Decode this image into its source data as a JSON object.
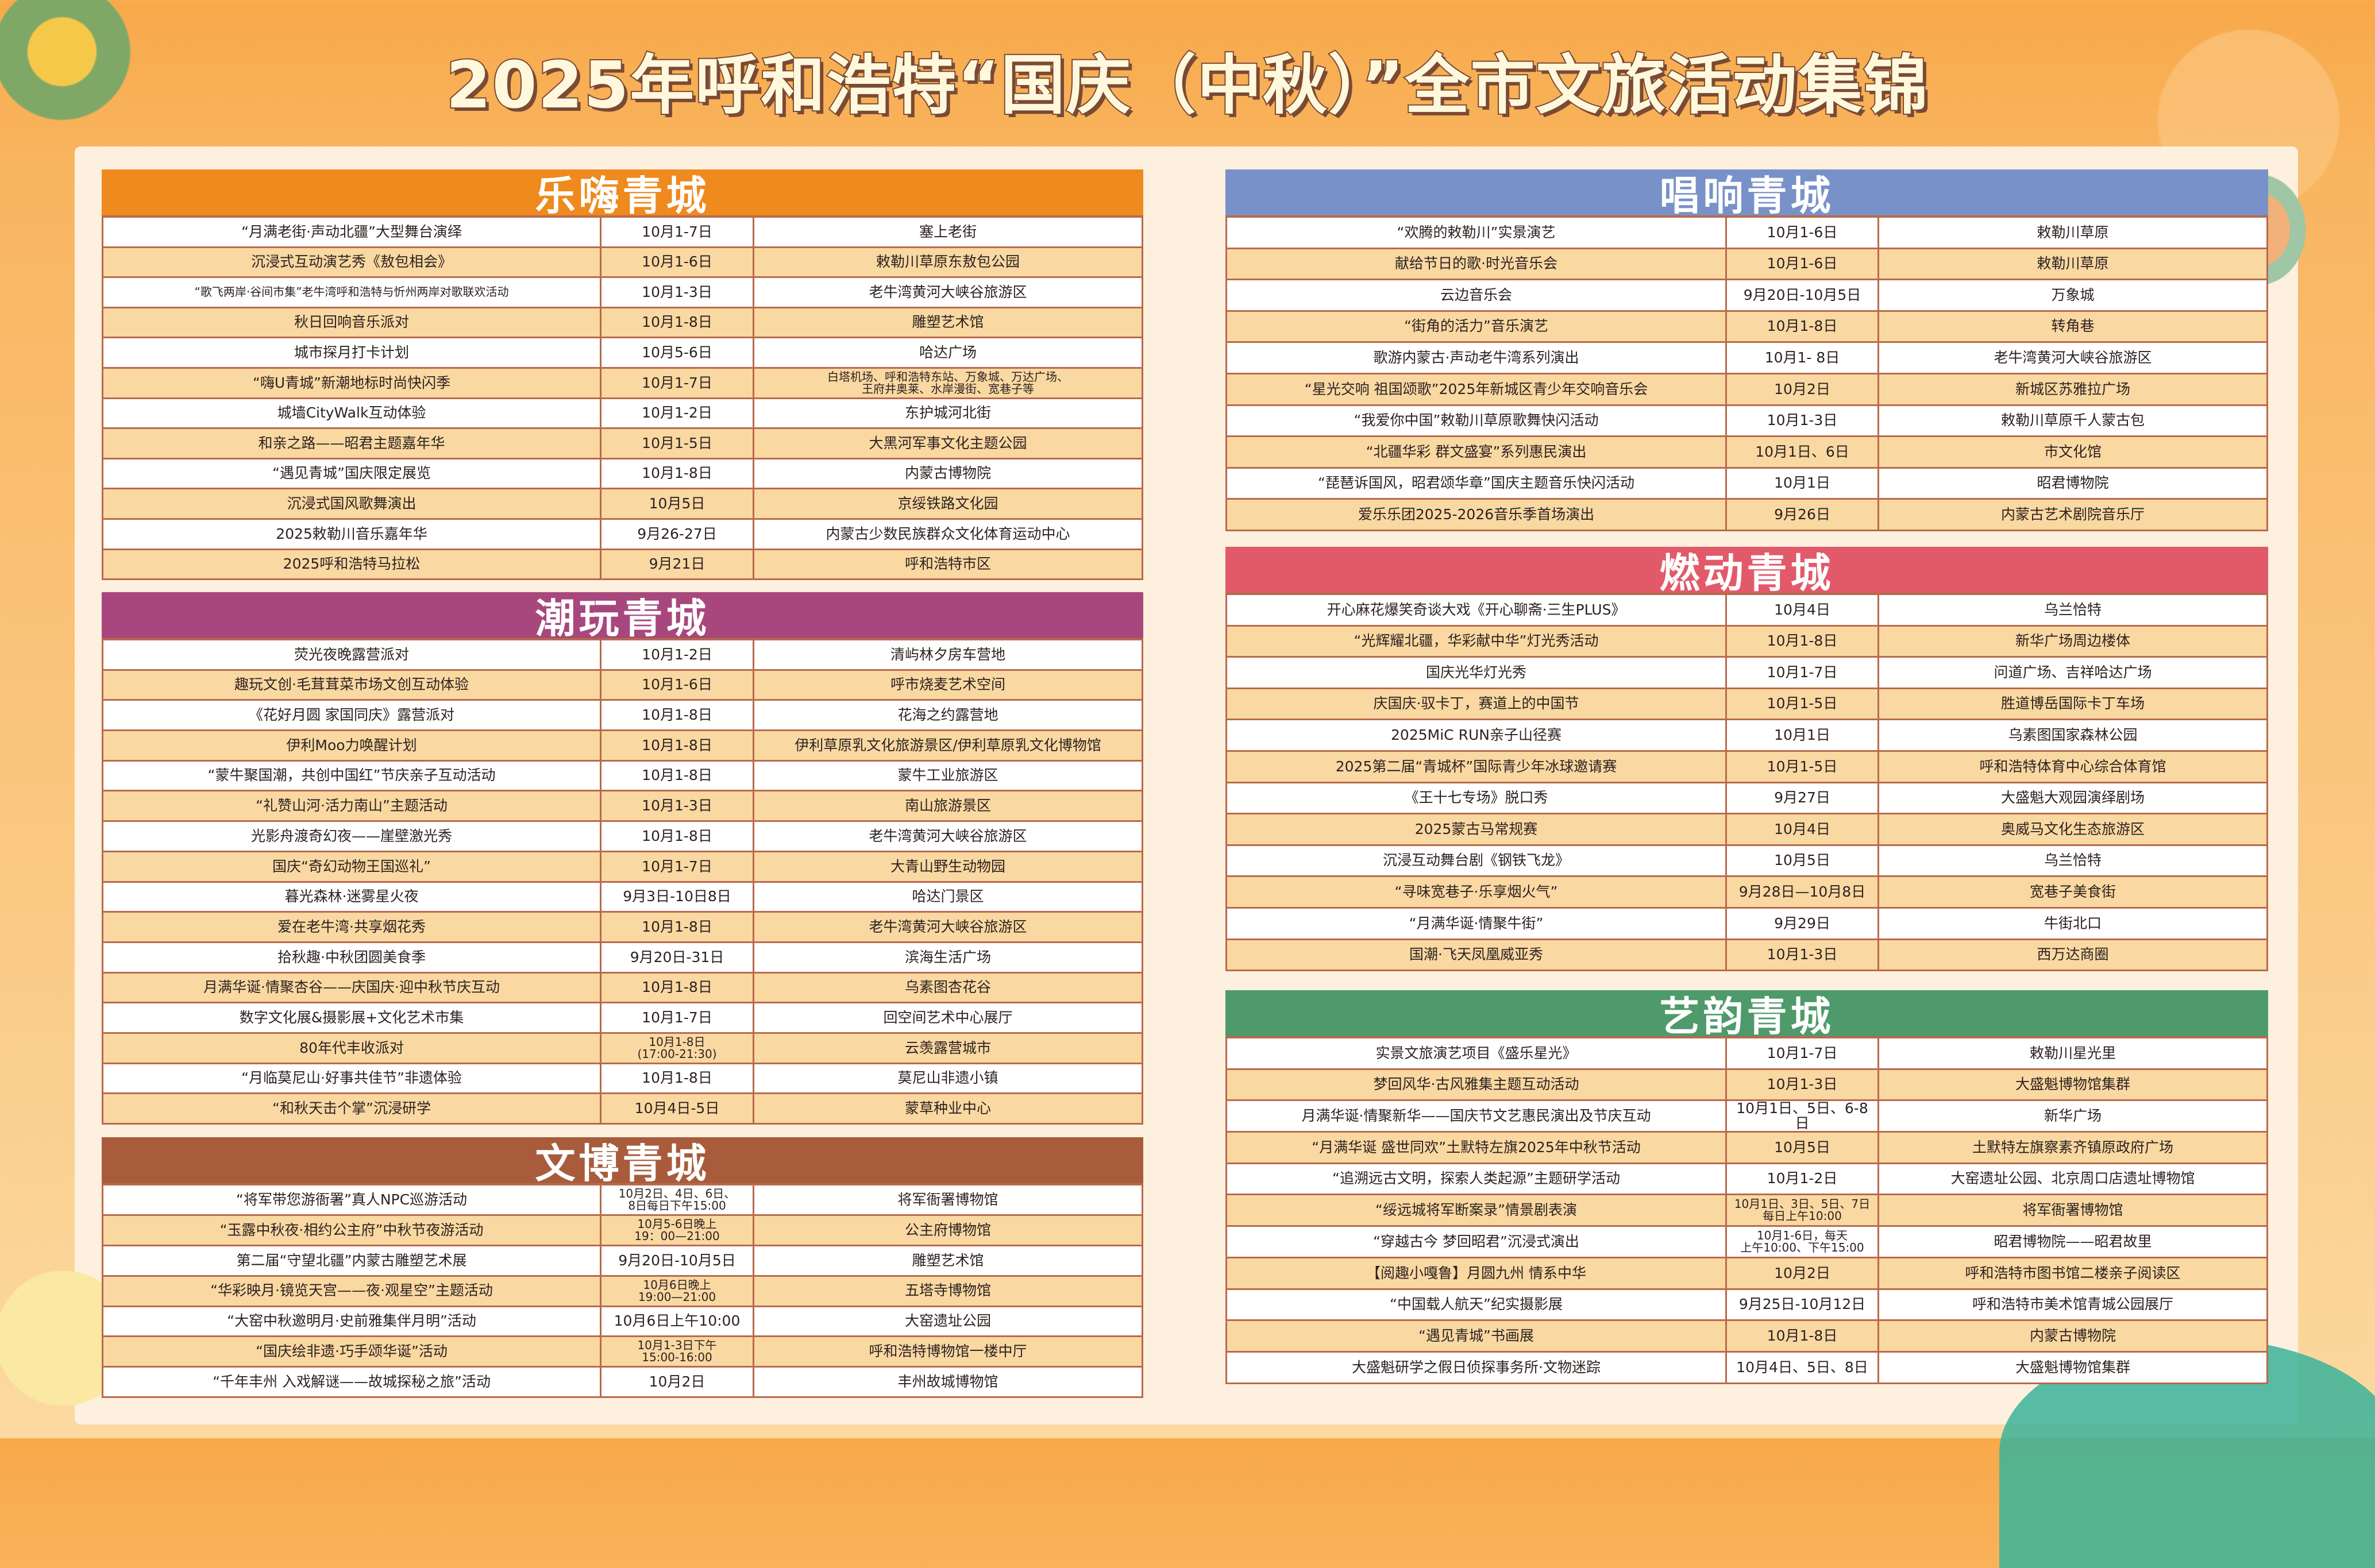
{
  "title": "2025年呼和浩特“国庆（中秋）”全市文旅活动集锦",
  "colors": {
    "row_alt": "#fad8a2",
    "border": "#b96a4c"
  },
  "sections": [
    {
      "name": "乐嗨青城",
      "color": "#ee8a1e",
      "rows": [
        [
          "“月满老街·声动北疆”大型舞台演绎",
          "10月1-7日",
          "塞上老街"
        ],
        [
          "沉浸式互动演艺秀《敖包相会》",
          "10月1-6日",
          "敕勒川草原东敖包公园"
        ],
        [
          "“歌飞两岸·谷间市集”老牛湾呼和浩特与忻州两岸对歌联欢活动",
          "10月1-3日",
          "老牛湾黄河大峡谷旅游区"
        ],
        [
          "秋日回响音乐派对",
          "10月1-8日",
          "雕塑艺术馆"
        ],
        [
          "城市探月打卡计划",
          "10月5-6日",
          "哈达广场"
        ],
        [
          "“嗨U青城”新潮地标时尚快闪季",
          "10月1-7日",
          "白塔机场、呼和浩特东站、万象城、万达广场、\n王府井奥莱、水岸漫街、宽巷子等"
        ],
        [
          "城墙CityWalk互动体验",
          "10月1-2日",
          "东护城河北街"
        ],
        [
          "和亲之路——昭君主题嘉年华",
          "10月1-5日",
          "大黑河军事文化主题公园"
        ],
        [
          "“遇见青城”国庆限定展览",
          "10月1-8日",
          "内蒙古博物院"
        ],
        [
          "沉浸式国风歌舞演出",
          "10月5日",
          "京绥铁路文化园"
        ],
        [
          "2025敕勒川音乐嘉年华",
          "9月26-27日",
          "内蒙古少数民族群众文化体育运动中心"
        ],
        [
          "2025呼和浩特马拉松",
          "9月21日",
          "呼和浩特市区"
        ]
      ]
    },
    {
      "name": "潮玩青城",
      "color": "#a8477e",
      "rows": [
        [
          "荧光夜晚露营派对",
          "10月1-2日",
          "清屿林夕房车营地"
        ],
        [
          "趣玩文创·毛茸茸菜市场文创互动体验",
          "10月1-6日",
          "呼市烧麦艺术空间"
        ],
        [
          "《花好月圆 家国同庆》露营派对",
          "10月1-8日",
          "花海之约露营地"
        ],
        [
          "伊利Moo力唤醒计划",
          "10月1-8日",
          "伊利草原乳文化旅游景区/伊利草原乳文化博物馆"
        ],
        [
          "“蒙牛聚国潮，共创中国红”节庆亲子互动活动",
          "10月1-8日",
          "蒙牛工业旅游区"
        ],
        [
          "“礼赞山河·活力南山”主题活动",
          "10月1-3日",
          "南山旅游景区"
        ],
        [
          "光影舟渡奇幻夜——崖壁激光秀",
          "10月1-8日",
          "老牛湾黄河大峡谷旅游区"
        ],
        [
          "国庆“奇幻动物王国巡礼”",
          "10月1-7日",
          "大青山野生动物园"
        ],
        [
          "暮光森林·迷雾星火夜",
          "9月3日-10日8日",
          "哈达门景区"
        ],
        [
          "爱在老牛湾·共享烟花秀",
          "10月1-8日",
          "老牛湾黄河大峡谷旅游区"
        ],
        [
          "拾秋趣·中秋团圆美食季",
          "9月20日-31日",
          "滨海生活广场"
        ],
        [
          "月满华诞·情聚杏谷——庆国庆·迎中秋节庆互动",
          "10月1-8日",
          "乌素图杏花谷"
        ],
        [
          "数字文化展&摄影展+文化艺术市集",
          "10月1-7日",
          "回空间艺术中心展厅"
        ],
        [
          "80年代丰收派对",
          "10月1-8日\n(17:00-21:30)",
          "云羡露营城市"
        ],
        [
          "“月临莫尼山·好事共佳节”非遗体验",
          "10月1-8日",
          "莫尼山非遗小镇"
        ],
        [
          "“和秋天击个掌”沉浸研学",
          "10月4日-5日",
          "蒙草种业中心"
        ]
      ]
    },
    {
      "name": "文博青城",
      "color": "#a85c3c",
      "rows": [
        [
          "“将军带您游衙署”真人NPC巡游活动",
          "10月2日、4日、6日、\n8日每日下午15:00",
          "将军衙署博物馆"
        ],
        [
          "“玉露中秋夜·相约公主府”中秋节夜游活动",
          "10月5-6日晚上\n19：00—21:00",
          "公主府博物馆"
        ],
        [
          "第二届“守望北疆”内蒙古雕塑艺术展",
          "9月20日-10月5日",
          "雕塑艺术馆"
        ],
        [
          "“华彩映月·镜览天宫——夜·观星空”主题活动",
          "10月6日晚上\n19:00—21:00",
          "五塔寺博物馆"
        ],
        [
          "“大窑中秋邀明月·史前雅集伴月明”活动",
          "10月6日上午10:00",
          "大窑遗址公园"
        ],
        [
          "“国庆绘非遗·巧手颂华诞”活动",
          "10月1-3日下午\n15:00-16:00",
          "呼和浩特博物馆一楼中厅"
        ],
        [
          "“千年丰州 入戏解谜——故城探秘之旅”活动",
          "10月2日",
          "丰州故城博物馆"
        ]
      ]
    },
    {
      "name": "唱响青城",
      "color": "#7891c8",
      "rows": [
        [
          "“欢腾的敕勒川”实景演艺",
          "10月1-6日",
          "敕勒川草原"
        ],
        [
          "献给节日的歌·时光音乐会",
          "10月1-6日",
          "敕勒川草原"
        ],
        [
          "云边音乐会",
          "9月20日-10月5日",
          "万象城"
        ],
        [
          "“街角的活力”音乐演艺",
          "10月1-8日",
          "转角巷"
        ],
        [
          "歌游内蒙古·声动老牛湾系列演出",
          "10月1- 8日",
          "老牛湾黄河大峡谷旅游区"
        ],
        [
          "“星光交响 祖国颂歌”2025年新城区青少年交响音乐会",
          "10月2日",
          "新城区苏雅拉广场"
        ],
        [
          "“我爱你中国”敕勒川草原歌舞快闪活动",
          "10月1-3日",
          "敕勒川草原千人蒙古包"
        ],
        [
          "“北疆华彩 群文盛宴”系列惠民演出",
          "10月1日、6日",
          "市文化馆"
        ],
        [
          "“琵琶诉国风，昭君颂华章”国庆主题音乐快闪活动",
          "10月1日",
          "昭君博物院"
        ],
        [
          "爱乐乐团2025-2026音乐季首场演出",
          "9月26日",
          "内蒙古艺术剧院音乐厅"
        ]
      ]
    },
    {
      "name": "燃动青城",
      "color": "#e25a6a",
      "rows": [
        [
          "开心麻花爆笑奇谈大戏《开心聊斋·三生PLUS》",
          "10月4日",
          "乌兰恰特"
        ],
        [
          "“光辉耀北疆，华彩献中华”灯光秀活动",
          "10月1-8日",
          "新华广场周边楼体"
        ],
        [
          "国庆光华灯光秀",
          "10月1-7日",
          "问道广场、吉祥哈达广场"
        ],
        [
          "庆国庆·驭卡丁，赛道上的中国节",
          "10月1-5日",
          "胜道博岳国际卡丁车场"
        ],
        [
          "2025MiC RUN亲子山径赛",
          "10月1日",
          "乌素图国家森林公园"
        ],
        [
          "2025第二届“青城杯”国际青少年冰球邀请赛",
          "10月1-5日",
          "呼和浩特体育中心综合体育馆"
        ],
        [
          "《王十七专场》脱口秀",
          "9月27日",
          "大盛魁大观园演绎剧场"
        ],
        [
          "2025蒙古马常规赛",
          "10月4日",
          "奥威马文化生态旅游区"
        ],
        [
          "沉浸互动舞台剧《钢铁飞龙》",
          "10月5日",
          "乌兰恰特"
        ],
        [
          "“寻味宽巷子·乐享烟火气”",
          "9月28日—10月8日",
          "宽巷子美食街"
        ],
        [
          "“月满华诞·情聚牛街”",
          "9月29日",
          "牛街北口"
        ],
        [
          "国潮·飞天凤凰威亚秀",
          "10月1-3日",
          "西万达商圈"
        ]
      ]
    },
    {
      "name": "艺韵青城",
      "color": "#4e9a6a",
      "rows": [
        [
          "实景文旅演艺项目《盛乐星光》",
          "10月1-7日",
          "敕勒川星光里"
        ],
        [
          "梦回风华·古风雅集主题互动活动",
          "10月1-3日",
          "大盛魁博物馆集群"
        ],
        [
          "月满华诞·情聚新华——国庆节文艺惠民演出及节庆互动",
          "10月1日、5日、6-8日",
          "新华广场"
        ],
        [
          "“月满华诞 盛世同欢”土默特左旗2025年中秋节活动",
          "10月5日",
          "土默特左旗察素齐镇原政府广场"
        ],
        [
          "“追溯远古文明，探索人类起源”主题研学活动",
          "10月1-2日",
          "大窑遗址公园、北京周口店遗址博物馆"
        ],
        [
          "“绥远城将军断案录”情景剧表演",
          "10月1日、3日、5日、7日\n每日上午10:00",
          "将军衙署博物馆"
        ],
        [
          "“穿越古今 梦回昭君”沉浸式演出",
          "10月1-6日，每天\n上午10:00、下午15:00",
          "昭君博物院——昭君故里"
        ],
        [
          "【阅趣小嘎鲁】月圆九州 情系中华",
          "10月2日",
          "呼和浩特市图书馆二楼亲子阅读区"
        ],
        [
          "“中国载人航天”纪实摄影展",
          "9月25日-10月12日",
          "呼和浩特市美术馆青城公园展厅"
        ],
        [
          "“遇见青城”书画展",
          "10月1-8日",
          "内蒙古博物院"
        ],
        [
          "大盛魁研学之假日侦探事务所·文物迷踪",
          "10月4日、5日、8日",
          "大盛魁博物馆集群"
        ]
      ]
    }
  ]
}
